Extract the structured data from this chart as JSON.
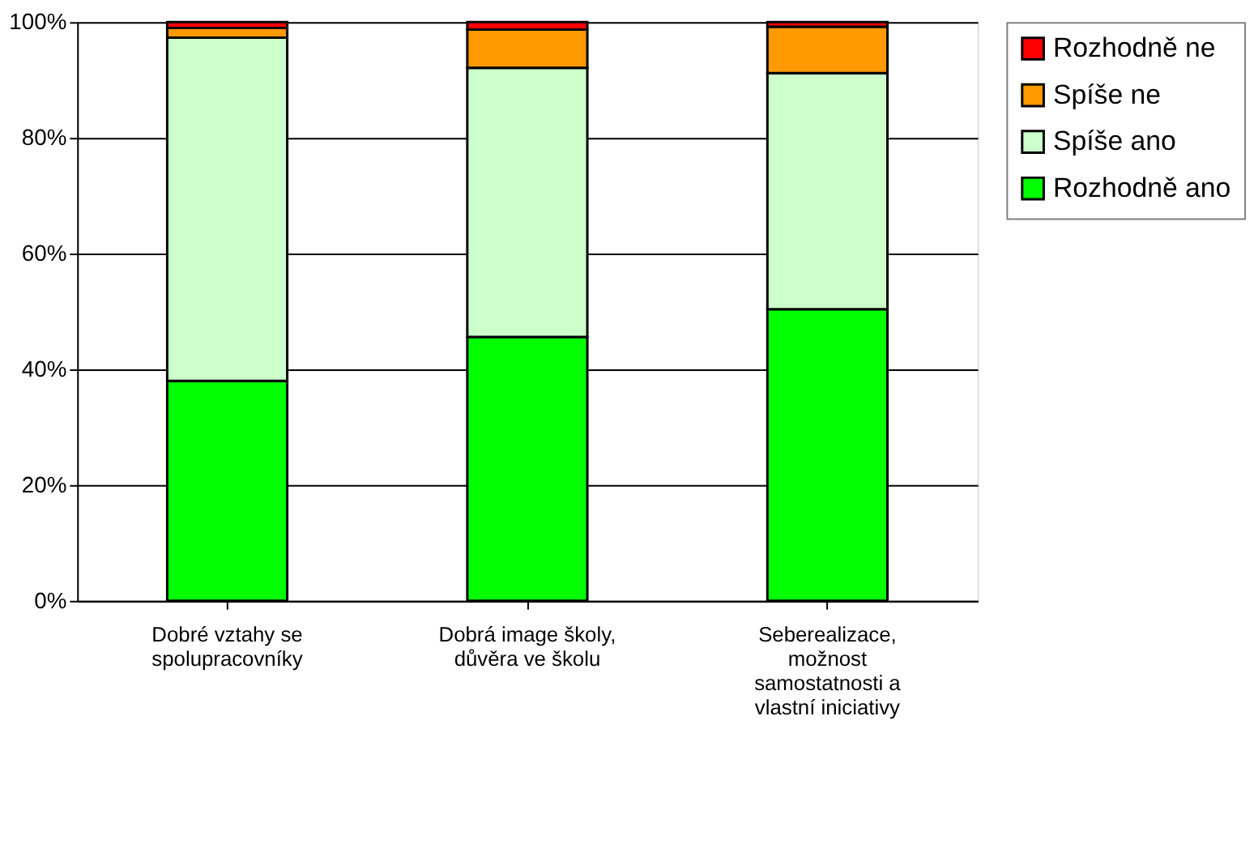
{
  "chart_data": {
    "type": "bar",
    "stacked": true,
    "categories": [
      "Dobré vztahy se spolupracovníky",
      "Dobrá image školy, důvěra ve školu",
      "Seberealizace, možnost samostatnosti a vlastní iniciativy"
    ],
    "series": [
      {
        "name": "Rozhodně ano",
        "color": "#00ff00",
        "values": [
          38.0,
          45.6,
          50.4
        ]
      },
      {
        "name": "Spíše ano",
        "color": "#ccffcc",
        "values": [
          59.3,
          46.5,
          40.8
        ]
      },
      {
        "name": "Spíše ne",
        "color": "#ff9900",
        "values": [
          1.7,
          6.6,
          8.0
        ]
      },
      {
        "name": "Rozhodně ne",
        "color": "#ff0000",
        "values": [
          1.0,
          1.3,
          0.8
        ]
      }
    ],
    "ylim": [
      0,
      100
    ],
    "yticks": [
      {
        "value": 0,
        "label": "0%"
      },
      {
        "value": 20,
        "label": "20%"
      },
      {
        "value": 40,
        "label": "40%"
      },
      {
        "value": 60,
        "label": "60%"
      },
      {
        "value": 80,
        "label": "80%"
      },
      {
        "value": 100,
        "label": "100%"
      }
    ],
    "grid": "y",
    "legend": "right"
  }
}
